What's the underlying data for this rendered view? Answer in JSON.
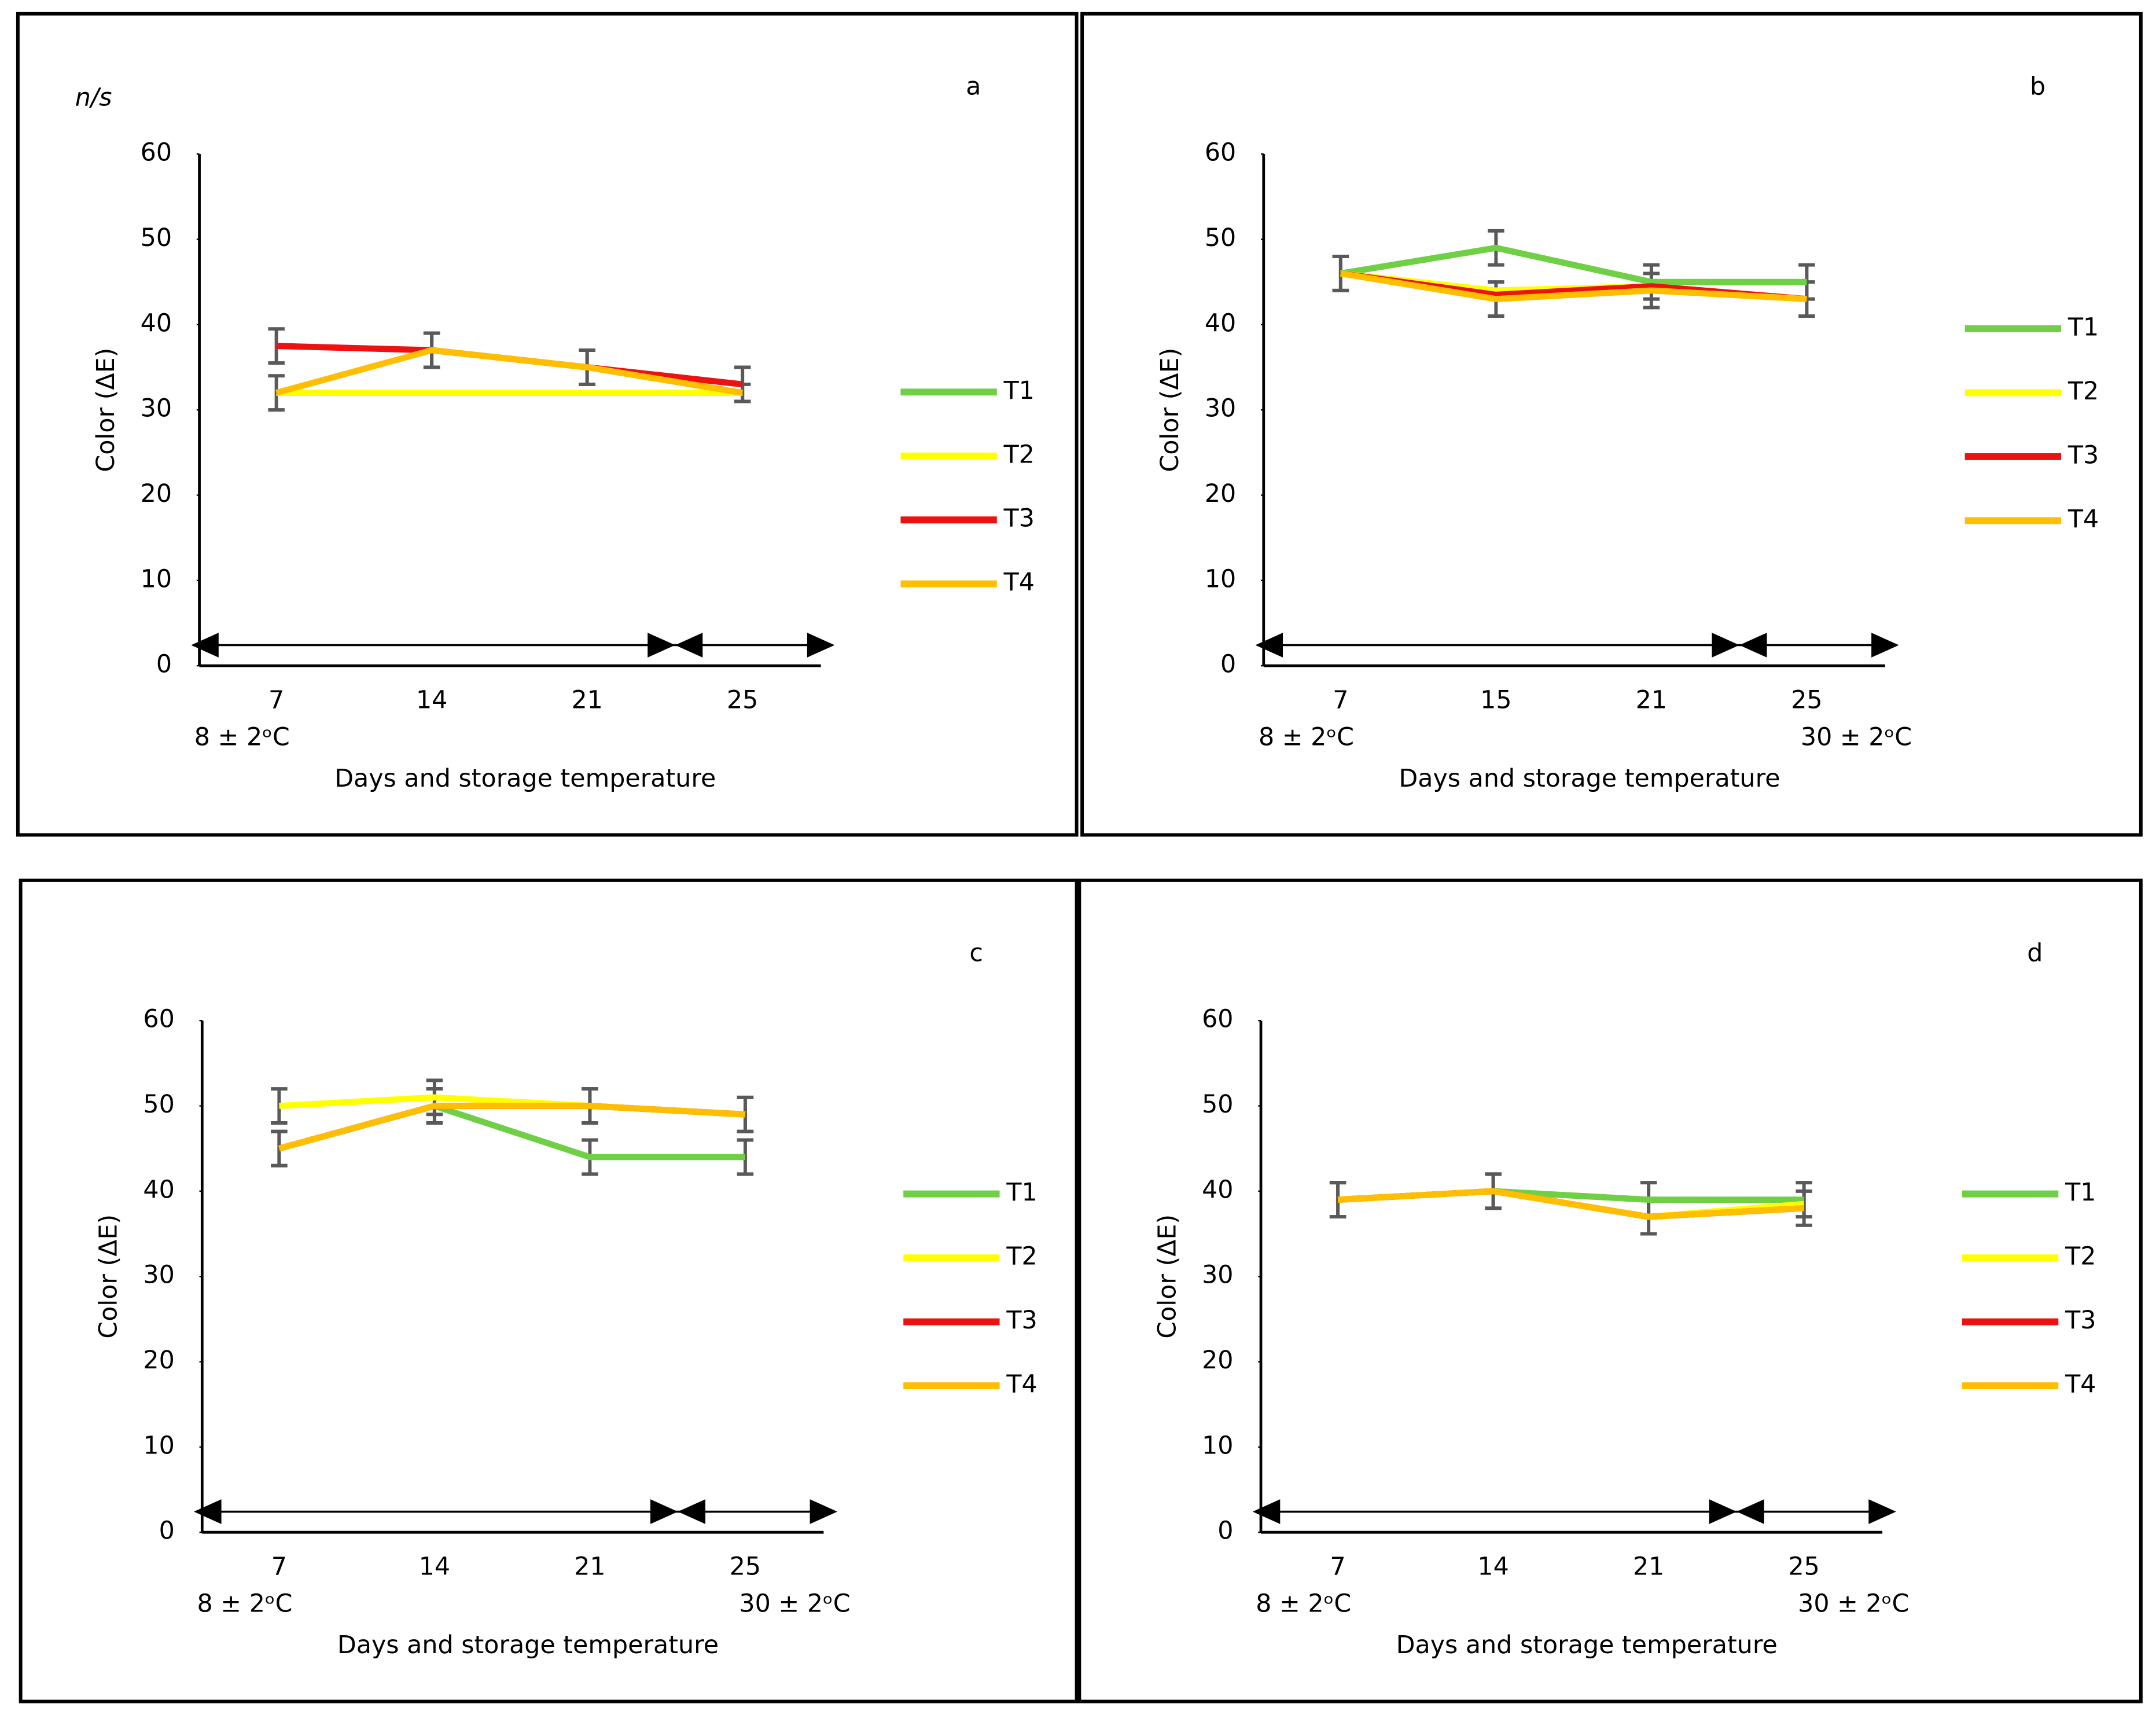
{
  "chart_data": [
    {
      "type": "line",
      "title": "a",
      "annotation": "n/s",
      "y_label": "Color (ΔE)",
      "x_label": "Days and storage temperature",
      "categories": [
        "7",
        "14",
        "21",
        "25"
      ],
      "temp_labels": [
        "8 ± 2ᵒC"
      ],
      "ylim": [
        0,
        60
      ],
      "yticks": [
        0,
        10,
        20,
        30,
        40,
        50,
        60
      ],
      "series": [
        {
          "name": "T1",
          "color": "#6fcf45",
          "values": [
            32,
            32,
            32,
            32
          ],
          "errors": [
            null,
            null,
            null,
            null
          ]
        },
        {
          "name": "T2",
          "color": "#ffff00",
          "values": [
            32,
            32,
            32,
            32
          ],
          "errors": [
            null,
            null,
            null,
            null
          ]
        },
        {
          "name": "T3",
          "color": "#ee1111",
          "values": [
            37.5,
            37,
            35,
            33
          ],
          "errors": [
            2,
            2,
            2,
            2
          ]
        },
        {
          "name": "T4",
          "color": "#ffbf00",
          "values": [
            32,
            37,
            35,
            32
          ],
          "errors": [
            2,
            2,
            2,
            1
          ]
        }
      ]
    },
    {
      "type": "line",
      "title": "b",
      "y_label": "Color (ΔE)",
      "x_label": "Days and storage temperature",
      "categories": [
        "7",
        "15",
        "21",
        "25"
      ],
      "temp_labels": [
        "8 ± 2ᵒC",
        "30 ± 2ᵒC"
      ],
      "ylim": [
        0,
        60
      ],
      "yticks": [
        0,
        10,
        20,
        30,
        40,
        50,
        60
      ],
      "series": [
        {
          "name": "T1",
          "color": "#6fcf45",
          "values": [
            46,
            49,
            45,
            45
          ],
          "errors": [
            2,
            2,
            2,
            2
          ]
        },
        {
          "name": "T2",
          "color": "#ffff00",
          "values": [
            46,
            44,
            44.5,
            43
          ],
          "errors": [
            null,
            null,
            null,
            null
          ]
        },
        {
          "name": "T3",
          "color": "#ee1111",
          "values": [
            46,
            43.5,
            44.5,
            43
          ],
          "errors": [
            null,
            null,
            null,
            null
          ]
        },
        {
          "name": "T4",
          "color": "#ffbf00",
          "values": [
            46,
            43,
            44,
            43
          ],
          "errors": [
            2,
            2,
            2,
            2
          ]
        }
      ]
    },
    {
      "type": "line",
      "title": "c",
      "y_label": "Color (ΔE)",
      "x_label": "Days and storage temperature",
      "categories": [
        "7",
        "14",
        "21",
        "25"
      ],
      "temp_labels": [
        "8 ± 2ᵒC",
        "30 ± 2ᵒC"
      ],
      "ylim": [
        0,
        60
      ],
      "yticks": [
        0,
        10,
        20,
        30,
        40,
        50,
        60
      ],
      "series": [
        {
          "name": "T1",
          "color": "#6fcf45",
          "values": [
            45,
            50,
            44,
            44
          ],
          "errors": [
            2,
            2,
            2,
            2
          ]
        },
        {
          "name": "T2",
          "color": "#ffff00",
          "values": [
            50,
            51,
            50,
            49
          ],
          "errors": [
            2,
            2,
            2,
            2
          ]
        },
        {
          "name": "T3",
          "color": "#ee1111",
          "values": [
            45,
            50,
            50,
            49
          ],
          "errors": [
            null,
            null,
            null,
            null
          ]
        },
        {
          "name": "T4",
          "color": "#ffbf00",
          "values": [
            45,
            50,
            50,
            49
          ],
          "errors": [
            2,
            2,
            2,
            2
          ]
        }
      ]
    },
    {
      "type": "line",
      "title": "d",
      "y_label": "Color (ΔE)",
      "x_label": "Days and storage temperature",
      "categories": [
        "7",
        "14",
        "21",
        "25"
      ],
      "temp_labels": [
        "8 ± 2ᵒC",
        "30 ± 2ᵒC"
      ],
      "ylim": [
        0,
        60
      ],
      "yticks": [
        0,
        10,
        20,
        30,
        40,
        50,
        60
      ],
      "series": [
        {
          "name": "T1",
          "color": "#6fcf45",
          "values": [
            39,
            40,
            39,
            39
          ],
          "errors": [
            2,
            2,
            2,
            2
          ]
        },
        {
          "name": "T2",
          "color": "#ffff00",
          "values": [
            39,
            40,
            37,
            38.5
          ],
          "errors": [
            null,
            null,
            null,
            null
          ]
        },
        {
          "name": "T3",
          "color": "#ee1111",
          "values": [
            39,
            40,
            37,
            38
          ],
          "errors": [
            null,
            null,
            null,
            null
          ]
        },
        {
          "name": "T4",
          "color": "#ffbf00",
          "values": [
            39,
            40,
            37,
            38
          ],
          "errors": [
            2,
            2,
            2,
            2
          ]
        }
      ]
    }
  ]
}
